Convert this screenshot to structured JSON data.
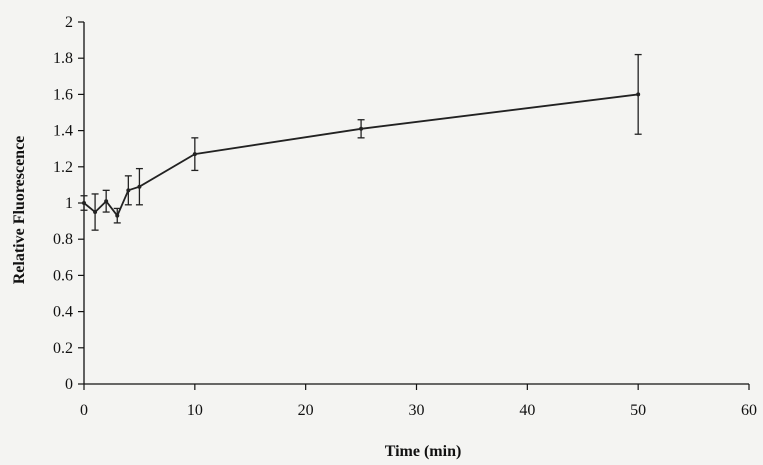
{
  "chart_data": {
    "type": "line",
    "title": "",
    "xlabel": "Time (min)",
    "ylabel": "Relative Fluorescence",
    "xlim": [
      0,
      60
    ],
    "ylim": [
      0,
      2
    ],
    "xticks": [
      0,
      10,
      20,
      30,
      40,
      50,
      60
    ],
    "yticks": [
      0,
      0.2,
      0.4,
      0.6,
      0.8,
      1,
      1.2,
      1.4,
      1.6,
      1.8,
      2
    ],
    "ytick_labels": [
      "0",
      "0.2",
      "0.4",
      "0.6",
      "0.8",
      "1",
      "1.2",
      "1.4",
      "1.6",
      "1.8",
      "2"
    ],
    "xtick_labels": [
      "0",
      "10",
      "20",
      "30",
      "40",
      "50",
      "60"
    ],
    "grid": false,
    "series": [
      {
        "x": [
          0,
          1,
          2,
          3,
          4,
          5,
          10,
          25,
          50
        ],
        "values": [
          1.0,
          0.95,
          1.01,
          0.93,
          1.07,
          1.09,
          1.27,
          1.41,
          1.6
        ],
        "errors": [
          0.04,
          0.1,
          0.06,
          0.04,
          0.08,
          0.1,
          0.09,
          0.05,
          0.22
        ]
      }
    ],
    "colors": {
      "line": "#222222",
      "axis": "#111111",
      "background": "#f4f4f2"
    }
  }
}
